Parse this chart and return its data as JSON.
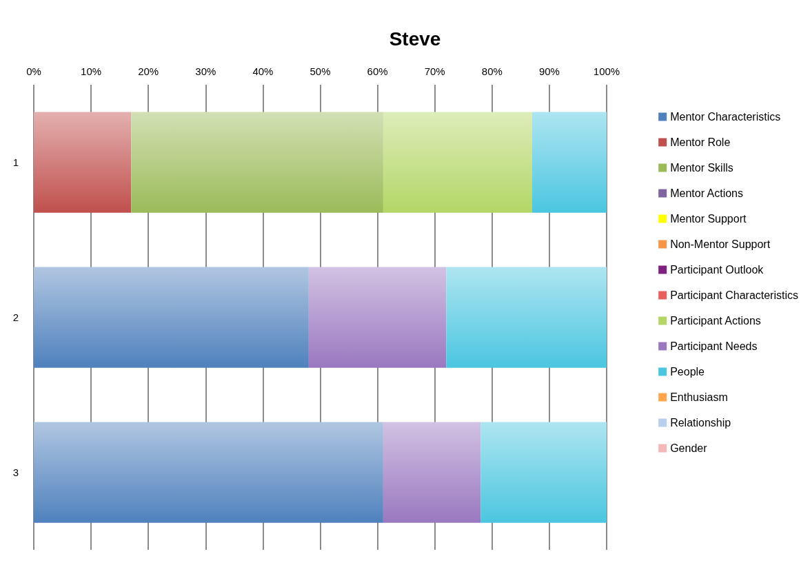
{
  "chart_data": {
    "type": "bar",
    "title": "Steve",
    "orientation": "horizontal",
    "stacked": true,
    "categories": [
      "1",
      "2",
      "3"
    ],
    "series": [
      {
        "name": "Mentor Characteristics",
        "color": "#4f81bd",
        "values": [
          null,
          48,
          61
        ]
      },
      {
        "name": "Mentor Role",
        "color": "#c0504d",
        "values": [
          17,
          null,
          null
        ]
      },
      {
        "name": "Mentor Skills",
        "color": "#9bbb59",
        "values": [
          44,
          null,
          null
        ]
      },
      {
        "name": "Mentor Actions",
        "color": "#8064a2",
        "values": [
          null,
          null,
          null
        ]
      },
      {
        "name": "Mentor Support",
        "color": "#ffff00",
        "values": [
          null,
          null,
          null
        ]
      },
      {
        "name": "Non-Mentor Support",
        "color": "#f79646",
        "values": [
          null,
          null,
          null
        ]
      },
      {
        "name": "Participant Outlook",
        "color": "#7f1f7f",
        "values": [
          null,
          null,
          null
        ]
      },
      {
        "name": "Participant Characteristics",
        "color": "#e8605a",
        "values": [
          null,
          null,
          null
        ]
      },
      {
        "name": "Participant Actions",
        "color": "#b3d666",
        "values": [
          26,
          null,
          null
        ]
      },
      {
        "name": "Participant Needs",
        "color": "#9a78c0",
        "values": [
          null,
          24,
          17
        ]
      },
      {
        "name": "People",
        "color": "#4bc6e0",
        "values": [
          13,
          28,
          22
        ]
      },
      {
        "name": "Enthusiasm",
        "color": "#ffa64d",
        "values": [
          null,
          null,
          null
        ]
      },
      {
        "name": "Relationship",
        "color": "#b8cfee",
        "values": [
          null,
          null,
          null
        ]
      },
      {
        "name": "Gender",
        "color": "#f4b8b8",
        "values": [
          null,
          null,
          null
        ]
      }
    ],
    "xlim": [
      0,
      100
    ],
    "xticks": [
      {
        "value": 0,
        "label": "0%"
      },
      {
        "value": 10,
        "label": "10%"
      },
      {
        "value": 20,
        "label": "20%"
      },
      {
        "value": 30,
        "label": "30%"
      },
      {
        "value": 40,
        "label": "40%"
      },
      {
        "value": 50,
        "label": "50%"
      },
      {
        "value": 60,
        "label": "60%"
      },
      {
        "value": 70,
        "label": "70%"
      },
      {
        "value": 80,
        "label": "80%"
      },
      {
        "value": 90,
        "label": "90%"
      },
      {
        "value": 100,
        "label": "100%"
      }
    ],
    "grid": "x",
    "legend": "right"
  }
}
